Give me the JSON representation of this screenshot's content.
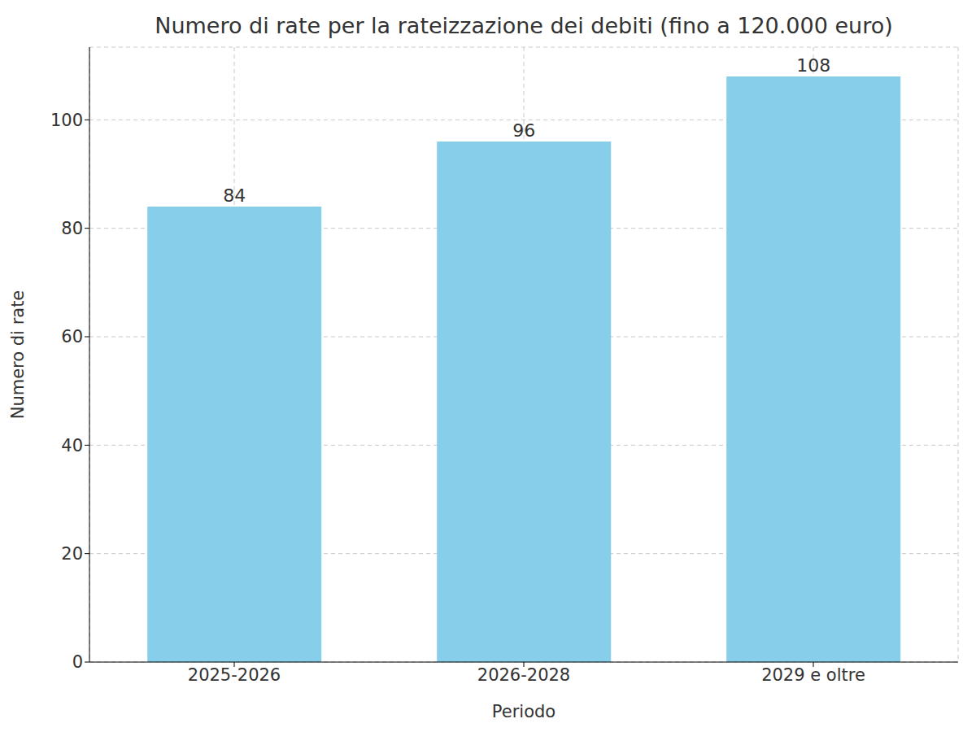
{
  "chart_data": {
    "type": "bar",
    "title": "Numero di rate per la rateizzazione dei debiti (fino a 120.000 euro)",
    "xlabel": "Periodo",
    "ylabel": "Numero di rate",
    "categories": [
      "2025-2026",
      "2026-2028",
      "2029 e oltre"
    ],
    "values": [
      84,
      96,
      108
    ],
    "color": "#87ceeb",
    "ylim": [
      0,
      113.4
    ],
    "yticks": [
      0,
      20,
      40,
      60,
      80,
      100
    ],
    "grid": true,
    "data_labels": true
  }
}
